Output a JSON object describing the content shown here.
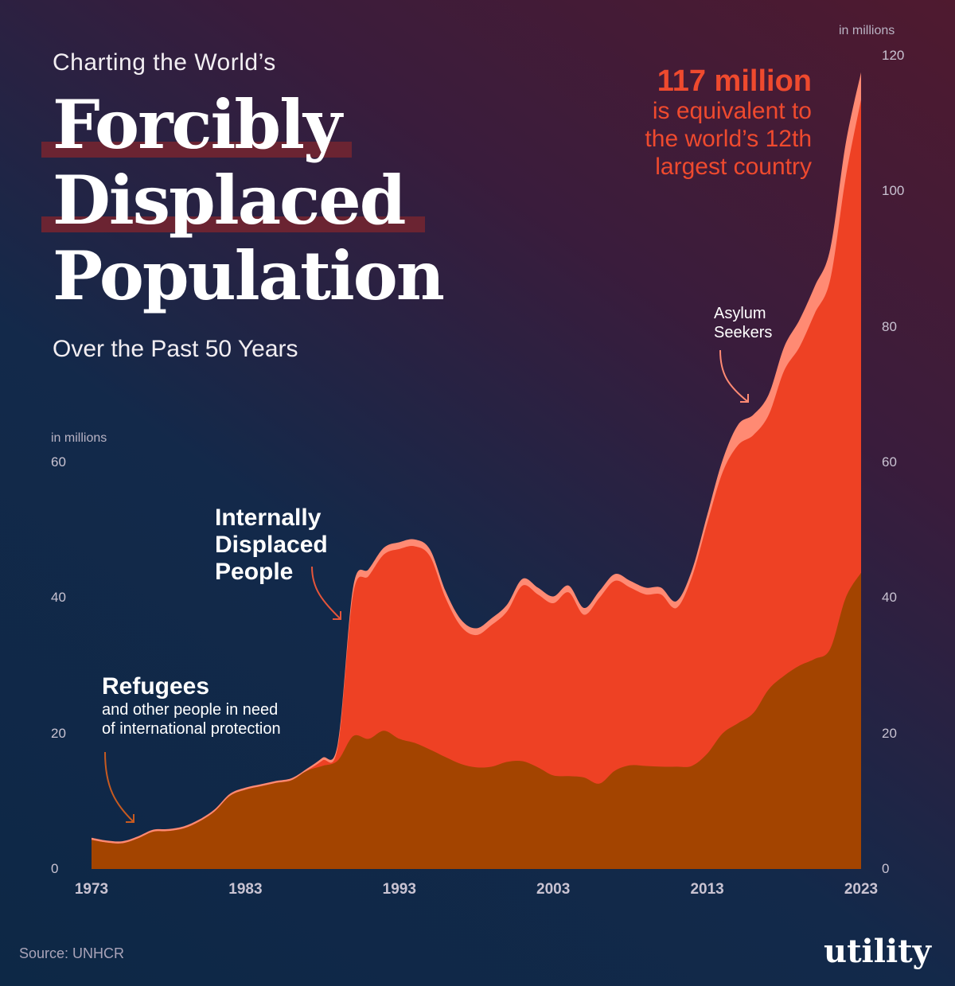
{
  "header": {
    "kicker": "Charting the World’s",
    "title_line1": "Forcibly",
    "title_line2": "Displaced",
    "title_line3": "Population",
    "subtitle": "Over the Past 50 Years"
  },
  "callout": {
    "headline": "117 million",
    "text_line1": "is equivalent to",
    "text_line2": "the world’s 12th",
    "text_line3": "largest country"
  },
  "labels": {
    "idp_line1": "Internally",
    "idp_line2": "Displaced",
    "idp_line3": "People",
    "refugees": "Refugees",
    "refugees_sub1": "and other people in need",
    "refugees_sub2": "of international protection",
    "asylum_line1": "Asylum",
    "asylum_line2": "Seekers"
  },
  "footer": {
    "source": "Source: UNHCR",
    "logo": "utility"
  },
  "colors": {
    "refugees": "#a34400",
    "idps": "#ee4124",
    "asylum": "#ff8a73",
    "background_dark": "#0d2846",
    "background_warm": "#4f1a2f"
  },
  "chart_data": {
    "type": "area",
    "stacked": true,
    "left_axis": {
      "label": "in millions",
      "ticks": [
        "0",
        "20",
        "40",
        "60"
      ],
      "ylim": [
        0,
        60
      ]
    },
    "right_axis": {
      "label": "in millions",
      "ticks": [
        "0",
        "20",
        "40",
        "60",
        "80",
        "100",
        "120"
      ],
      "ylim": [
        0,
        120
      ]
    },
    "x_ticks": [
      "1973",
      "1983",
      "1993",
      "2003",
      "2013",
      "2023"
    ],
    "xlim": [
      1973,
      2023
    ],
    "x": [
      1973,
      1974,
      1975,
      1976,
      1977,
      1978,
      1979,
      1980,
      1981,
      1982,
      1983,
      1984,
      1985,
      1986,
      1987,
      1988,
      1989,
      1990,
      1991,
      1992,
      1993,
      1994,
      1995,
      1996,
      1997,
      1998,
      1999,
      2000,
      2001,
      2002,
      2003,
      2004,
      2005,
      2006,
      2007,
      2008,
      2009,
      2010,
      2011,
      2012,
      2013,
      2014,
      2015,
      2016,
      2017,
      2018,
      2019,
      2020,
      2021,
      2022,
      2023
    ],
    "series": [
      {
        "name": "Refugees",
        "values": [
          4.3,
          3.9,
          3.8,
          4.5,
          5.5,
          5.6,
          6.0,
          7.0,
          8.5,
          10.8,
          11.7,
          12.2,
          12.7,
          13.1,
          14.5,
          15.2,
          16.0,
          19.6,
          19.2,
          20.4,
          19.2,
          18.6,
          17.6,
          16.5,
          15.5,
          15.0,
          15.1,
          15.8,
          15.9,
          15.0,
          13.8,
          13.7,
          13.5,
          12.6,
          14.5,
          15.3,
          15.2,
          15.1,
          15.1,
          15.2,
          17.0,
          20.0,
          21.5,
          23.0,
          26.5,
          28.5,
          30.0,
          31.0,
          32.5,
          40.0,
          43.7
        ]
      },
      {
        "name": "Internally Displaced People",
        "values": [
          0,
          0,
          0,
          0,
          0,
          0,
          0,
          0,
          0,
          0,
          0,
          0,
          0,
          0,
          0,
          0.8,
          2,
          21.0,
          24.0,
          26.0,
          28.0,
          29.0,
          28.5,
          23.5,
          20.3,
          19.5,
          20.9,
          22.2,
          25.9,
          25.5,
          25.4,
          27.1,
          24.0,
          27.4,
          28.0,
          26.2,
          25.3,
          25.4,
          23.4,
          27.8,
          34.0,
          38.5,
          41.0,
          41.0,
          40.5,
          45.0,
          47.0,
          51.0,
          54.5,
          62.0,
          69.8
        ]
      },
      {
        "name": "Asylum Seekers",
        "values": [
          0.3,
          0.3,
          0.3,
          0.3,
          0.3,
          0.3,
          0.3,
          0.3,
          0.3,
          0.3,
          0.3,
          0.3,
          0.3,
          0.3,
          0.3,
          0.4,
          0.5,
          1,
          1,
          1,
          1,
          1,
          1,
          1,
          1,
          1,
          1,
          1,
          1,
          1,
          1,
          1,
          1,
          1,
          1,
          1,
          1,
          1,
          1,
          1,
          1.2,
          1.8,
          3,
          3,
          3,
          3.5,
          4,
          4,
          4.5,
          5,
          4
        ]
      }
    ],
    "annotation": "117 million"
  }
}
